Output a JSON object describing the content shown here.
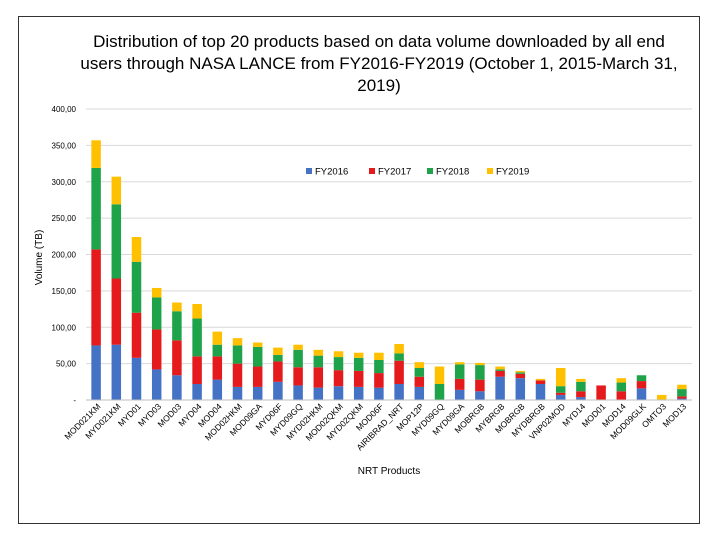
{
  "chart_data": {
    "type": "bar",
    "stacked": true,
    "title": "Distribution of top 20 products based on data volume downloaded by all end users through NASA LANCE from FY2016-FY2019 (October 1, 2015-March 31, 2019)",
    "xlabel": "NRT Products",
    "ylabel": "Volume (TB)",
    "ylim": [
      0,
      400
    ],
    "yticks": [
      0,
      50,
      100,
      150,
      200,
      250,
      300,
      350,
      400
    ],
    "ytick_labels": [
      "-",
      "50,00",
      "100,00",
      "150,00",
      "200,00",
      "250,00",
      "300,00",
      "350,00",
      "400,00"
    ],
    "grid": true,
    "legend_position": "top-right",
    "categories": [
      "MOD021KM",
      "MYD021KM",
      "MYD01",
      "MYD03",
      "MOD03",
      "MYD04",
      "MOD04",
      "MOD02HKM",
      "MOD09GA",
      "MYD06F",
      "MYD09GQ",
      "MYD02HKM",
      "MOD02QKM",
      "MYD02QKM",
      "MOD06F",
      "AIRIBRAD_NRT",
      "MOP12P",
      "MYD09GQ",
      "MYD09GA",
      "MOBRGB",
      "MYBRGB",
      "MOBRGB",
      "MYDBRGB",
      "VNP02MOD",
      "MYD14",
      "MOD01",
      "MOD14",
      "MOD09GLK",
      "OMTO3",
      "MOD13"
    ],
    "tick_labels": [
      "MOD021KM",
      "MYD021KM",
      "MYD01",
      "MYD03",
      "MOD03",
      "MYD04",
      "MOD04",
      "MOD02HKM",
      "MOD09GA",
      "MYD06F",
      "MYD09GQ",
      "MYD02HKM",
      "MOD02QKM",
      "MYD02QKM",
      "MOD06F",
      "AIRIBRAD_NRT",
      "MOP12P",
      "MYD09GQ",
      "MYD09GA",
      "MOBRGB",
      "MYBRGB",
      "MOBRGB",
      "MYDBRGB",
      "VNP02MOD",
      "MYD14",
      "MOD01",
      "MOD14",
      "MOD09GLK",
      "OMTO3",
      "MOD13"
    ],
    "series": [
      {
        "name": "FY2016",
        "color": "#4472C4",
        "values": [
          75,
          76,
          58,
          42,
          34,
          22,
          28,
          18,
          18,
          25,
          20,
          17,
          19,
          18,
          17,
          22,
          18,
          0,
          14,
          12,
          32,
          30,
          22,
          7,
          4,
          0,
          0,
          16,
          0,
          2
        ]
      },
      {
        "name": "FY2017",
        "color": "#E41A1C",
        "values": [
          132,
          91,
          62,
          55,
          48,
          38,
          32,
          32,
          28,
          28,
          25,
          28,
          22,
          22,
          20,
          32,
          14,
          0,
          15,
          16,
          8,
          6,
          5,
          3,
          8,
          20,
          12,
          10,
          0,
          3
        ]
      },
      {
        "name": "FY2018",
        "color": "#1FA34A",
        "values": [
          112,
          102,
          70,
          44,
          40,
          52,
          16,
          25,
          27,
          9,
          24,
          16,
          18,
          18,
          18,
          10,
          12,
          22,
          20,
          20,
          2,
          2,
          0,
          9,
          13,
          0,
          12,
          8,
          0,
          10
        ]
      },
      {
        "name": "FY2019",
        "color": "#FFC000",
        "values": [
          38,
          38,
          34,
          13,
          12,
          20,
          18,
          10,
          6,
          10,
          7,
          8,
          8,
          7,
          10,
          13,
          8,
          24,
          3,
          3,
          4,
          2,
          2,
          25,
          4,
          0,
          6,
          0,
          7,
          6
        ]
      }
    ]
  }
}
